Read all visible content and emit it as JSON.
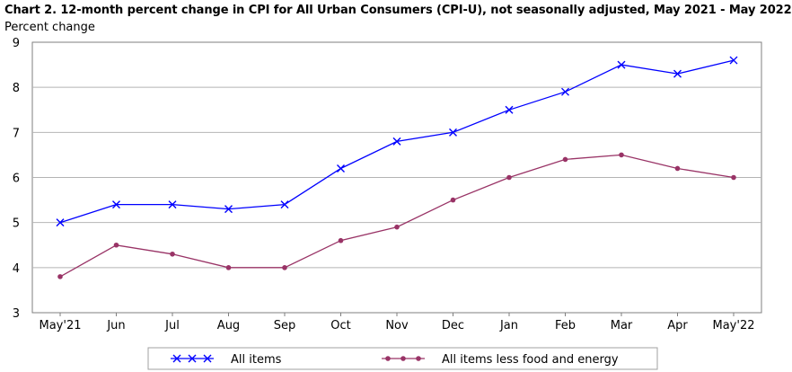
{
  "chart_data": {
    "type": "line",
    "title": "Chart 2. 12-month percent change in CPI for All Urban Consumers (CPI-U), not seasonally adjusted, May 2021 - May 2022",
    "ylabel": "Percent change",
    "xlabel": "",
    "categories": [
      "May'21",
      "Jun",
      "Jul",
      "Aug",
      "Sep",
      "Oct",
      "Nov",
      "Dec",
      "Jan",
      "Feb",
      "Mar",
      "Apr",
      "May'22"
    ],
    "ylim": [
      3,
      9
    ],
    "yticks": [
      3,
      4,
      5,
      6,
      7,
      8,
      9
    ],
    "grid": true,
    "legend_position": "bottom",
    "series": [
      {
        "name": "All items",
        "color": "#0000ff",
        "marker": "x",
        "values": [
          5.0,
          5.4,
          5.4,
          5.3,
          5.4,
          6.2,
          6.8,
          7.0,
          7.5,
          7.9,
          8.5,
          8.3,
          8.6
        ]
      },
      {
        "name": "All items less food and energy",
        "color": "#993366",
        "marker": "circle",
        "values": [
          3.8,
          4.5,
          4.3,
          4.0,
          4.0,
          4.6,
          4.9,
          5.5,
          6.0,
          6.4,
          6.5,
          6.2,
          6.0
        ]
      }
    ]
  }
}
